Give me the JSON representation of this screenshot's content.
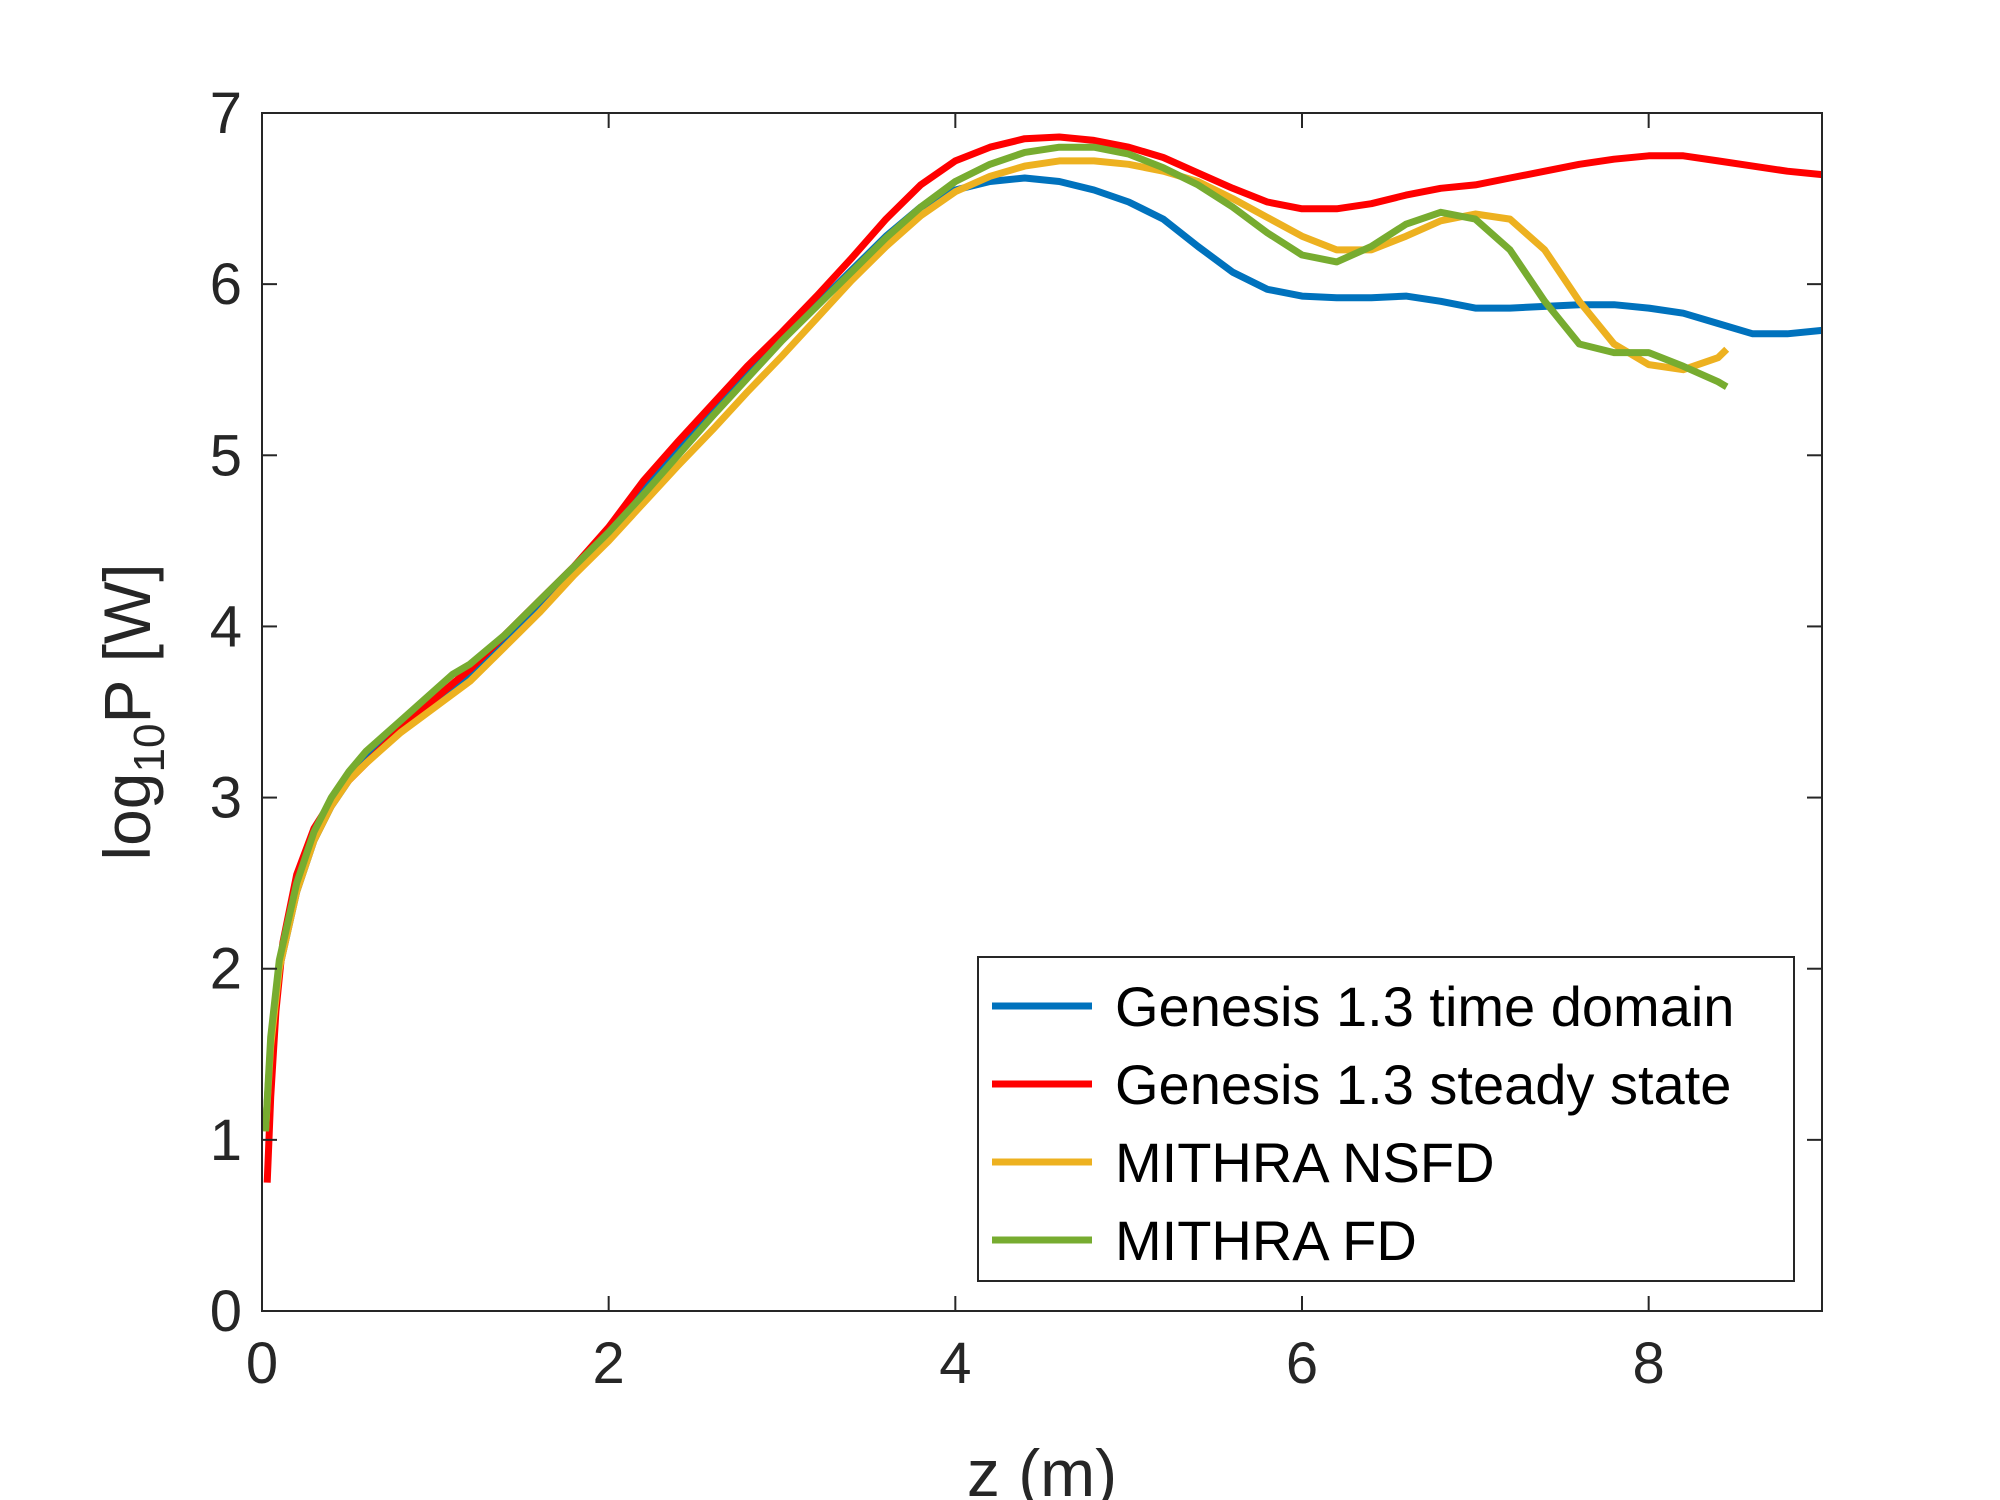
{
  "chart_data": {
    "type": "line",
    "title": "",
    "xlabel": "z (m)",
    "ylabel_main": "log",
    "ylabel_sub": "10",
    "ylabel_rest": "P [W]",
    "xlim": [
      0,
      9
    ],
    "ylim": [
      0,
      7
    ],
    "xticks": [
      0,
      2,
      4,
      6,
      8
    ],
    "yticks": [
      0,
      1,
      2,
      3,
      4,
      5,
      6,
      7
    ],
    "grid": false,
    "legend_position": "bottom-right",
    "series": [
      {
        "name": "Genesis 1.3 time domain",
        "color": "#0072BD",
        "x": [
          0.02,
          0.05,
          0.1,
          0.2,
          0.3,
          0.4,
          0.5,
          0.6,
          0.8,
          1.0,
          1.2,
          1.4,
          1.6,
          1.8,
          2.0,
          2.2,
          2.4,
          2.6,
          2.8,
          3.0,
          3.2,
          3.4,
          3.6,
          3.8,
          4.0,
          4.2,
          4.4,
          4.6,
          4.8,
          5.0,
          5.2,
          5.4,
          5.6,
          5.8,
          6.0,
          6.2,
          6.4,
          6.6,
          6.8,
          7.0,
          7.2,
          7.4,
          7.6,
          7.8,
          8.0,
          8.2,
          8.4,
          8.6,
          8.8,
          9.0
        ],
        "values": [
          1.05,
          1.55,
          2.0,
          2.45,
          2.75,
          2.95,
          3.1,
          3.22,
          3.4,
          3.55,
          3.7,
          3.9,
          4.1,
          4.32,
          4.55,
          4.8,
          5.05,
          5.27,
          5.48,
          5.68,
          5.88,
          6.08,
          6.28,
          6.45,
          6.55,
          6.6,
          6.62,
          6.6,
          6.55,
          6.48,
          6.38,
          6.22,
          6.07,
          5.97,
          5.93,
          5.92,
          5.92,
          5.93,
          5.9,
          5.86,
          5.86,
          5.87,
          5.88,
          5.88,
          5.86,
          5.83,
          5.77,
          5.71,
          5.71,
          5.73
        ]
      },
      {
        "name": "Genesis 1.3 steady state",
        "color": "#FF0000",
        "x": [
          0.03,
          0.05,
          0.08,
          0.12,
          0.2,
          0.3,
          0.4,
          0.5,
          0.6,
          0.8,
          1.0,
          1.2,
          1.4,
          1.6,
          1.8,
          2.0,
          2.2,
          2.4,
          2.6,
          2.8,
          3.0,
          3.2,
          3.4,
          3.6,
          3.8,
          4.0,
          4.2,
          4.4,
          4.6,
          4.8,
          5.0,
          5.2,
          5.4,
          5.6,
          5.8,
          6.0,
          6.2,
          6.4,
          6.6,
          6.8,
          7.0,
          7.2,
          7.4,
          7.6,
          7.8,
          8.0,
          8.2,
          8.4,
          8.6,
          8.8,
          9.0
        ],
        "values": [
          0.75,
          1.25,
          1.75,
          2.15,
          2.55,
          2.82,
          2.98,
          3.1,
          3.2,
          3.4,
          3.58,
          3.75,
          3.95,
          4.15,
          4.35,
          4.58,
          4.85,
          5.08,
          5.3,
          5.52,
          5.72,
          5.93,
          6.15,
          6.38,
          6.58,
          6.72,
          6.8,
          6.85,
          6.86,
          6.84,
          6.8,
          6.74,
          6.65,
          6.56,
          6.48,
          6.44,
          6.44,
          6.47,
          6.52,
          6.56,
          6.58,
          6.62,
          6.66,
          6.7,
          6.73,
          6.75,
          6.75,
          6.72,
          6.69,
          6.66,
          6.64
        ]
      },
      {
        "name": "MITHRA NSFD",
        "color": "#EDB120",
        "x": [
          0.02,
          0.05,
          0.1,
          0.2,
          0.3,
          0.4,
          0.5,
          0.6,
          0.8,
          1.0,
          1.2,
          1.4,
          1.6,
          1.8,
          2.0,
          2.2,
          2.4,
          2.6,
          2.8,
          3.0,
          3.2,
          3.4,
          3.6,
          3.8,
          4.0,
          4.2,
          4.4,
          4.6,
          4.8,
          5.0,
          5.2,
          5.4,
          5.6,
          5.8,
          6.0,
          6.2,
          6.4,
          6.6,
          6.8,
          7.0,
          7.2,
          7.4,
          7.6,
          7.8,
          8.0,
          8.2,
          8.4,
          8.45
        ],
        "values": [
          1.05,
          1.55,
          2.0,
          2.45,
          2.75,
          2.95,
          3.1,
          3.2,
          3.38,
          3.53,
          3.68,
          3.88,
          4.08,
          4.3,
          4.5,
          4.72,
          4.94,
          5.15,
          5.37,
          5.58,
          5.8,
          6.02,
          6.22,
          6.4,
          6.54,
          6.63,
          6.69,
          6.72,
          6.72,
          6.7,
          6.66,
          6.6,
          6.5,
          6.39,
          6.28,
          6.2,
          6.2,
          6.28,
          6.37,
          6.41,
          6.38,
          6.2,
          5.9,
          5.65,
          5.53,
          5.5,
          5.57,
          5.62
        ]
      },
      {
        "name": "MITHRA FD",
        "color": "#77AC30",
        "x": [
          0.02,
          0.05,
          0.1,
          0.2,
          0.3,
          0.4,
          0.5,
          0.6,
          0.8,
          1.0,
          1.1,
          1.2,
          1.4,
          1.6,
          1.8,
          2.0,
          2.2,
          2.4,
          2.6,
          2.8,
          3.0,
          3.2,
          3.4,
          3.6,
          3.8,
          4.0,
          4.2,
          4.4,
          4.6,
          4.8,
          5.0,
          5.2,
          5.4,
          5.6,
          5.8,
          6.0,
          6.2,
          6.4,
          6.6,
          6.8,
          7.0,
          7.2,
          7.4,
          7.6,
          7.8,
          8.0,
          8.2,
          8.4,
          8.45
        ],
        "values": [
          1.05,
          1.6,
          2.05,
          2.5,
          2.8,
          3.0,
          3.15,
          3.27,
          3.45,
          3.63,
          3.72,
          3.78,
          3.95,
          4.15,
          4.35,
          4.55,
          4.77,
          5.0,
          5.23,
          5.45,
          5.67,
          5.87,
          6.07,
          6.27,
          6.45,
          6.6,
          6.7,
          6.77,
          6.8,
          6.8,
          6.76,
          6.68,
          6.58,
          6.45,
          6.3,
          6.17,
          6.13,
          6.22,
          6.35,
          6.42,
          6.38,
          6.2,
          5.9,
          5.65,
          5.6,
          5.6,
          5.52,
          5.43,
          5.4
        ]
      }
    ]
  }
}
